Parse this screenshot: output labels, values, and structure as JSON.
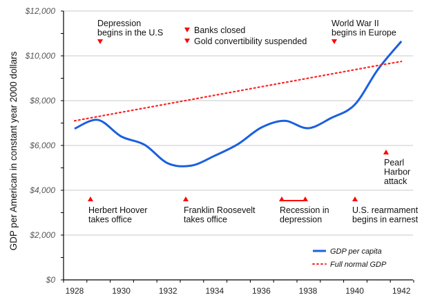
{
  "chart_data": {
    "type": "line",
    "title": "",
    "xlabel": "",
    "ylabel": "GDP per American in constant year 2000 dollars",
    "x": [
      1928,
      1929,
      1930,
      1931,
      1932,
      1933,
      1934,
      1935,
      1936,
      1937,
      1938,
      1939,
      1940,
      1941,
      1942
    ],
    "xticks": [
      "1928",
      "1930",
      "1932",
      "1934",
      "1936",
      "1938",
      "1940",
      "1942"
    ],
    "yticks": [
      "$0",
      "$2,000",
      "$4,000",
      "$6,000",
      "$8,000",
      "$10,000",
      "$12,000"
    ],
    "ylim": [
      0,
      12000
    ],
    "grid": true,
    "legend_placement": "bottom-right",
    "series": [
      {
        "name": "GDP per capita",
        "color": "#1a5fe0",
        "style": "solid",
        "values": [
          6750,
          7140,
          6400,
          6030,
          5200,
          5100,
          5540,
          6060,
          6800,
          7100,
          6770,
          7230,
          7820,
          9400,
          10650
        ]
      },
      {
        "name": "Full normal GDP",
        "color": "#ff2020",
        "style": "dotted",
        "values": [
          7100,
          7290,
          7480,
          7670,
          7860,
          8050,
          8240,
          8430,
          8620,
          8810,
          9000,
          9190,
          9380,
          9570,
          9750
        ]
      }
    ],
    "annotations": [
      {
        "text": [
          "Depression",
          "begins in the U.S"
        ],
        "year": 1929,
        "marker": "down"
      },
      {
        "text": [
          "Banks closed"
        ],
        "year": 1932.8,
        "marker": "down"
      },
      {
        "text": [
          "Gold convertibility suspended"
        ],
        "year": 1932.8,
        "marker": "down"
      },
      {
        "text": [
          "World War II",
          "begins in Europe"
        ],
        "year": 1939,
        "marker": "down"
      },
      {
        "text": [
          "Herbert Hoover",
          "takes office"
        ],
        "year": 1929,
        "marker": "up"
      },
      {
        "text": [
          "Franklin Roosevelt",
          "takes office"
        ],
        "year": 1933,
        "marker": "up"
      },
      {
        "text": [
          "Recession in",
          "depression"
        ],
        "year": 1937,
        "marker": "up-range"
      },
      {
        "text": [
          "U.S. rearmament",
          "begins in earnest"
        ],
        "year": 1940,
        "marker": "up"
      },
      {
        "text": [
          "Pearl",
          "Harbor",
          "attack"
        ],
        "year": 1941.9,
        "marker": "up"
      }
    ],
    "marker_color": "#ff0000"
  }
}
